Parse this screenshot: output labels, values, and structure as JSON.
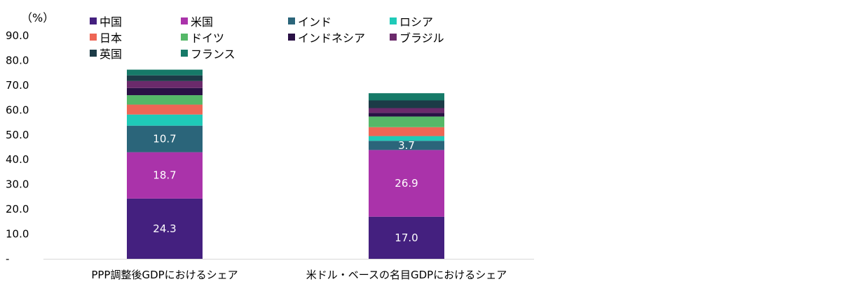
{
  "unit_label": "（%）",
  "chart_data": {
    "type": "bar",
    "stacked": true,
    "ylim": [
      0,
      90
    ],
    "yticks": [
      "-",
      "10.0",
      "20.0",
      "30.0",
      "40.0",
      "50.0",
      "60.0",
      "70.0",
      "80.0",
      "90.0"
    ],
    "categories": [
      "PPP調整後GDPにおけるシェア",
      "米ドル・ベースの名目GDPにおけるシェア"
    ],
    "series": [
      {
        "name": "中国",
        "color": "#44207f",
        "values": [
          24.3,
          17.0
        ],
        "labels": [
          "24.3",
          "17.0"
        ]
      },
      {
        "name": "米国",
        "color": "#aa33aa",
        "values": [
          18.7,
          26.9
        ],
        "labels": [
          "18.7",
          "26.9"
        ]
      },
      {
        "name": "インド",
        "color": "#2b657a",
        "values": [
          10.7,
          3.7
        ],
        "labels": [
          "10.7",
          "3.7"
        ]
      },
      {
        "name": "ロシア",
        "color": "#1fcab8",
        "values": [
          4.5,
          1.9
        ],
        "labels": [
          "",
          ""
        ]
      },
      {
        "name": "日本",
        "color": "#ee6655",
        "values": [
          4.0,
          3.6
        ],
        "labels": [
          "",
          ""
        ]
      },
      {
        "name": "ドイツ",
        "color": "#55b868",
        "values": [
          3.8,
          4.3
        ],
        "labels": [
          "",
          ""
        ]
      },
      {
        "name": "インドネシア",
        "color": "#2a1145",
        "values": [
          2.9,
          1.5
        ],
        "labels": [
          "",
          ""
        ]
      },
      {
        "name": "ブラジル",
        "color": "#6b2a6b",
        "values": [
          2.8,
          1.9
        ],
        "labels": [
          "",
          ""
        ]
      },
      {
        "name": "英国",
        "color": "#1c3b47",
        "values": [
          2.3,
          3.1
        ],
        "labels": [
          "",
          ""
        ]
      },
      {
        "name": "フランス",
        "color": "#167a68",
        "values": [
          2.3,
          2.9
        ],
        "labels": [
          "",
          ""
        ]
      }
    ]
  }
}
